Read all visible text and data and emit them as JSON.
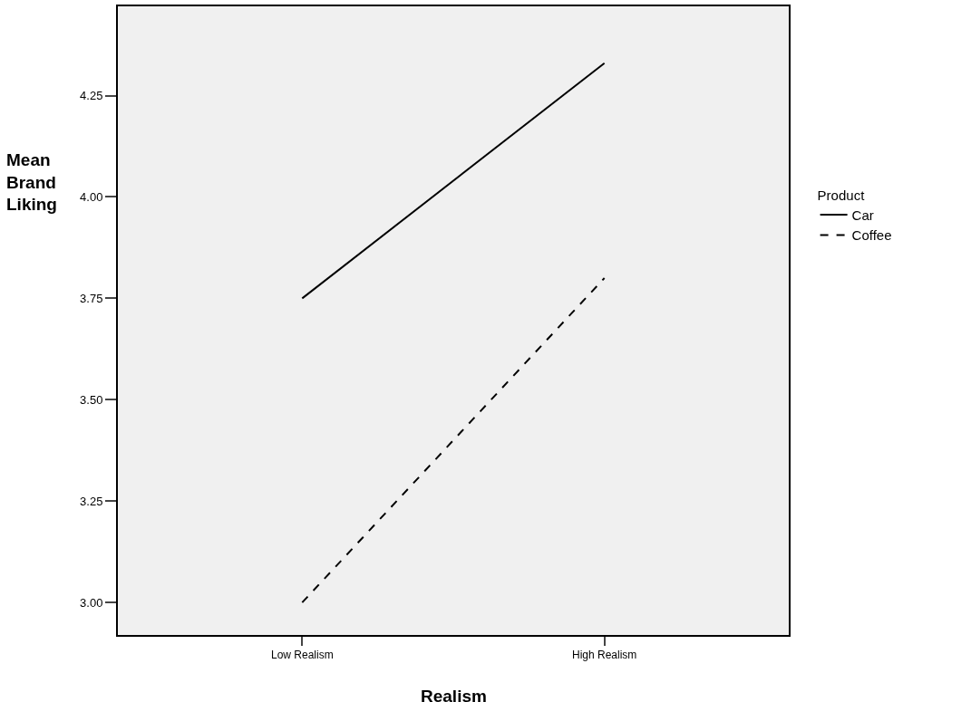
{
  "chart_data": {
    "type": "line",
    "xlabel": "Realism",
    "ylabel": "Mean Brand Liking",
    "legend_title": "Product",
    "categories": [
      "Low Realism",
      "High Realism"
    ],
    "series": [
      {
        "name": "Car",
        "color": "#000000",
        "values": [
          3.75,
          4.33
        ],
        "line_style": "solid"
      },
      {
        "name": "Coffee",
        "color": "#000000",
        "values": [
          3.0,
          3.8
        ],
        "line_style": "dashed"
      }
    ],
    "ylim": [
      2.92,
      4.47
    ],
    "yticks": [
      {
        "value": 3.0,
        "label": "3.00"
      },
      {
        "value": 3.25,
        "label": "3.25"
      },
      {
        "value": 3.5,
        "label": "3.50"
      },
      {
        "value": 3.75,
        "label": "3.75"
      },
      {
        "value": 4.0,
        "label": "4.00"
      },
      {
        "value": 4.25,
        "label": "4.25"
      }
    ],
    "grid": false,
    "legend": "right",
    "marker": "none"
  }
}
